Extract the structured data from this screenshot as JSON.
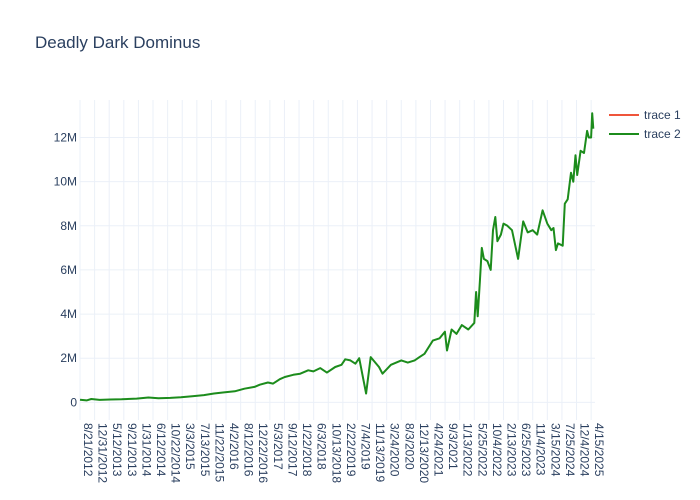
{
  "chart_data": {
    "type": "line",
    "title": "Deadly Dark Dominus",
    "xlabel": "",
    "ylabel": "",
    "ylim": [
      -800000,
      13700000
    ],
    "grid": true,
    "legend_position": "top-right",
    "y_ticks": [
      {
        "value": 0,
        "label": "0"
      },
      {
        "value": 2000000,
        "label": "2M"
      },
      {
        "value": 4000000,
        "label": "4M"
      },
      {
        "value": 6000000,
        "label": "6M"
      },
      {
        "value": 8000000,
        "label": "8M"
      },
      {
        "value": 10000000,
        "label": "10M"
      },
      {
        "value": 12000000,
        "label": "12M"
      }
    ],
    "x_tick_labels": [
      "8/21/2012",
      "12/31/2012",
      "5/12/2013",
      "9/21/2013",
      "1/31/2014",
      "6/12/2014",
      "10/22/2014",
      "3/3/2015",
      "7/13/2015",
      "11/22/2015",
      "4/2/2016",
      "8/12/2016",
      "12/22/2016",
      "5/3/2017",
      "9/12/2017",
      "1/22/2018",
      "6/3/2018",
      "10/13/2018",
      "2/22/2019",
      "7/4/2019",
      "11/13/2019",
      "3/24/2020",
      "8/3/2020",
      "12/13/2020",
      "4/24/2021",
      "9/3/2021",
      "1/13/2022",
      "5/25/2022",
      "10/4/2022",
      "2/13/2023",
      "6/25/2023",
      "11/4/2023",
      "3/15/2024",
      "7/25/2024",
      "12/4/2024",
      "4/15/2025"
    ],
    "series": [
      {
        "name": "trace 1",
        "color": "#ef553b",
        "points": []
      },
      {
        "name": "trace 2",
        "color": "#1c8c1c",
        "points": [
          [
            "2012-08-21",
            120000
          ],
          [
            "2012-10-20",
            90000
          ],
          [
            "2012-12-01",
            150000
          ],
          [
            "2013-02-15",
            110000
          ],
          [
            "2013-05-20",
            130000
          ],
          [
            "2013-09-01",
            140000
          ],
          [
            "2014-01-15",
            170000
          ],
          [
            "2014-05-01",
            220000
          ],
          [
            "2014-08-01",
            190000
          ],
          [
            "2014-11-15",
            200000
          ],
          [
            "2015-02-20",
            230000
          ],
          [
            "2015-06-01",
            280000
          ],
          [
            "2015-09-15",
            330000
          ],
          [
            "2015-12-15",
            400000
          ],
          [
            "2016-03-15",
            450000
          ],
          [
            "2016-06-20",
            500000
          ],
          [
            "2016-09-15",
            620000
          ],
          [
            "2016-12-15",
            700000
          ],
          [
            "2017-02-01",
            800000
          ],
          [
            "2017-04-15",
            900000
          ],
          [
            "2017-06-01",
            850000
          ],
          [
            "2017-08-01",
            1050000
          ],
          [
            "2017-09-15",
            1150000
          ],
          [
            "2017-12-01",
            1250000
          ],
          [
            "2018-02-01",
            1300000
          ],
          [
            "2018-04-15",
            1450000
          ],
          [
            "2018-06-01",
            1400000
          ],
          [
            "2018-08-01",
            1550000
          ],
          [
            "2018-10-01",
            1350000
          ],
          [
            "2018-12-15",
            1600000
          ],
          [
            "2019-02-10",
            1700000
          ],
          [
            "2019-03-15",
            1950000
          ],
          [
            "2019-05-01",
            1900000
          ],
          [
            "2019-06-15",
            1750000
          ],
          [
            "2019-07-20",
            2000000
          ],
          [
            "2019-09-20",
            400000
          ],
          [
            "2019-11-01",
            2050000
          ],
          [
            "2020-01-15",
            1600000
          ],
          [
            "2020-02-15",
            1300000
          ],
          [
            "2020-05-01",
            1700000
          ],
          [
            "2020-08-03",
            1900000
          ],
          [
            "2020-10-01",
            1800000
          ],
          [
            "2020-12-01",
            1900000
          ],
          [
            "2021-01-15",
            2050000
          ],
          [
            "2021-03-01",
            2200000
          ],
          [
            "2021-05-15",
            2800000
          ],
          [
            "2021-07-15",
            2900000
          ],
          [
            "2021-09-01",
            3200000
          ],
          [
            "2021-09-20",
            2350000
          ],
          [
            "2021-11-01",
            3300000
          ],
          [
            "2021-12-15",
            3100000
          ],
          [
            "2022-02-01",
            3500000
          ],
          [
            "2022-04-01",
            3300000
          ],
          [
            "2022-05-25",
            3600000
          ],
          [
            "2022-06-10",
            5000000
          ],
          [
            "2022-06-25",
            3900000
          ],
          [
            "2022-07-15",
            5500000
          ],
          [
            "2022-08-01",
            7000000
          ],
          [
            "2022-08-20",
            6500000
          ],
          [
            "2022-09-20",
            6400000
          ],
          [
            "2022-10-20",
            6000000
          ],
          [
            "2022-11-10",
            7800000
          ],
          [
            "2022-12-01",
            8400000
          ],
          [
            "2022-12-20",
            7300000
          ],
          [
            "2023-01-20",
            7600000
          ],
          [
            "2023-02-13",
            8100000
          ],
          [
            "2023-03-20",
            8000000
          ],
          [
            "2023-05-01",
            7800000
          ],
          [
            "2023-06-25",
            6500000
          ],
          [
            "2023-08-10",
            8200000
          ],
          [
            "2023-09-20",
            7700000
          ],
          [
            "2023-11-04",
            7800000
          ],
          [
            "2023-12-15",
            7600000
          ],
          [
            "2024-02-01",
            8700000
          ],
          [
            "2024-03-15",
            8100000
          ],
          [
            "2024-04-20",
            7800000
          ],
          [
            "2024-05-10",
            7900000
          ],
          [
            "2024-06-01",
            6900000
          ],
          [
            "2024-06-20",
            7200000
          ],
          [
            "2024-08-01",
            7100000
          ],
          [
            "2024-08-20",
            9000000
          ],
          [
            "2024-09-15",
            9200000
          ],
          [
            "2024-10-15",
            10400000
          ],
          [
            "2024-11-05",
            10000000
          ],
          [
            "2024-11-25",
            11200000
          ],
          [
            "2024-12-10",
            10300000
          ],
          [
            "2025-01-10",
            11400000
          ],
          [
            "2025-02-10",
            11300000
          ],
          [
            "2025-03-10",
            12300000
          ],
          [
            "2025-03-25",
            12000000
          ],
          [
            "2025-04-15",
            12000000
          ],
          [
            "2025-04-25",
            13100000
          ],
          [
            "2025-05-05",
            12400000
          ]
        ]
      }
    ]
  }
}
